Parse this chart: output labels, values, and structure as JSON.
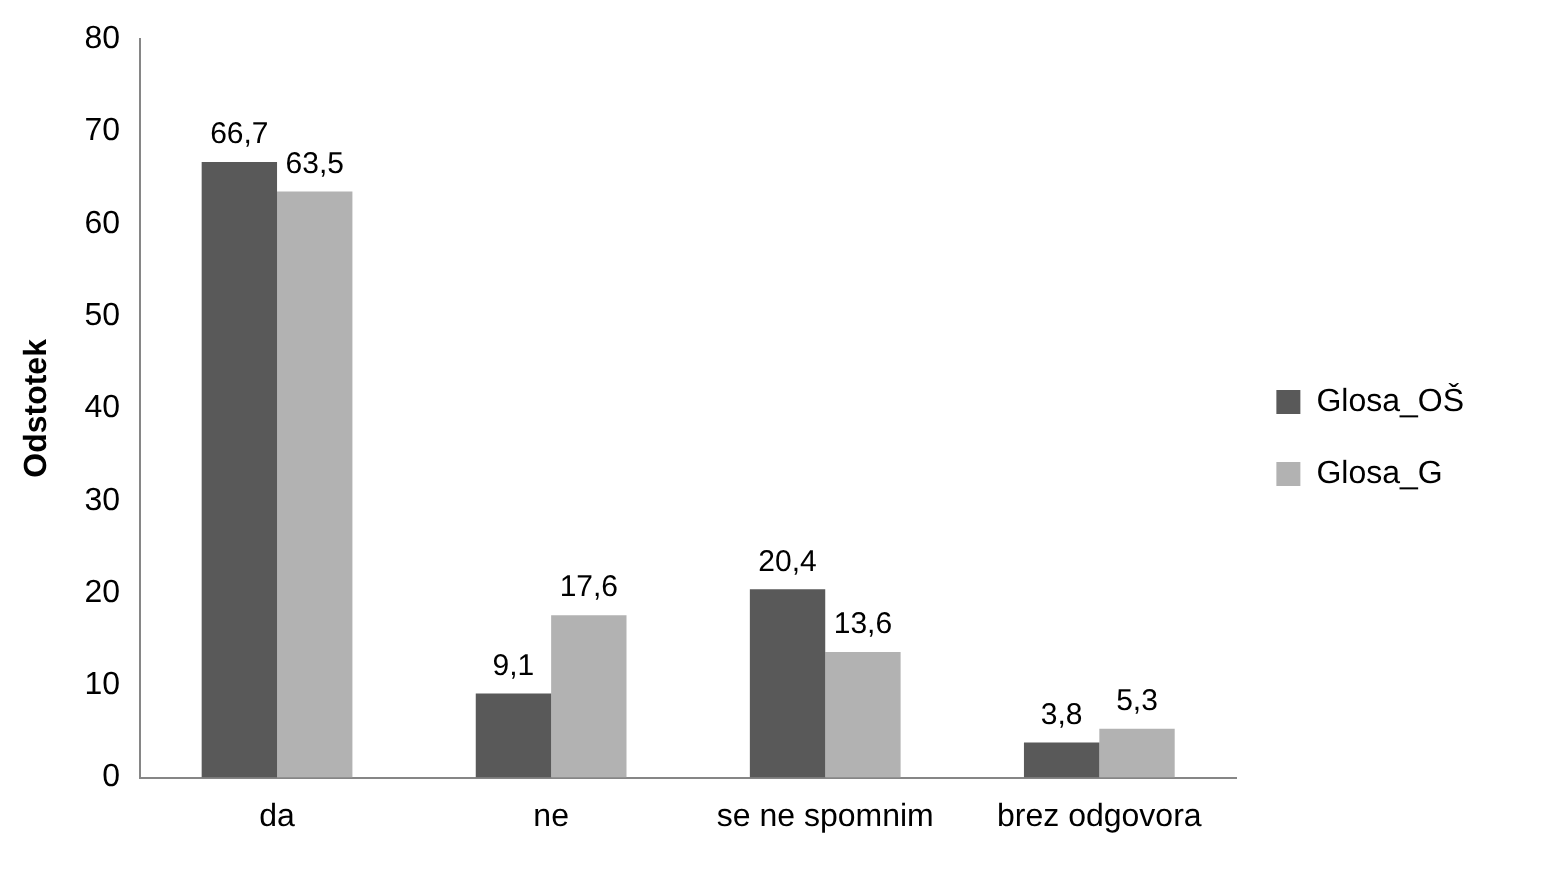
{
  "chart_data": {
    "type": "bar",
    "ylabel": "Odstotek",
    "categories": [
      "da",
      "ne",
      "se ne spomnim",
      "brez odgovora"
    ],
    "series": [
      {
        "name": "Glosa_OŠ",
        "color": "#595959",
        "values": [
          66.7,
          9.1,
          20.4,
          3.8
        ],
        "value_labels": [
          "66,7",
          "9,1",
          "20,4",
          "3,8"
        ]
      },
      {
        "name": "Glosa_G",
        "color": "#b2b2b2",
        "values": [
          63.5,
          17.6,
          13.6,
          5.3
        ],
        "value_labels": [
          "63,5",
          "17,6",
          "13,6",
          "5,3"
        ]
      }
    ],
    "ylim": [
      0,
      80
    ],
    "yticks": [
      0,
      10,
      20,
      30,
      40,
      50,
      60,
      70,
      80
    ],
    "grid": false,
    "legend": "right"
  }
}
